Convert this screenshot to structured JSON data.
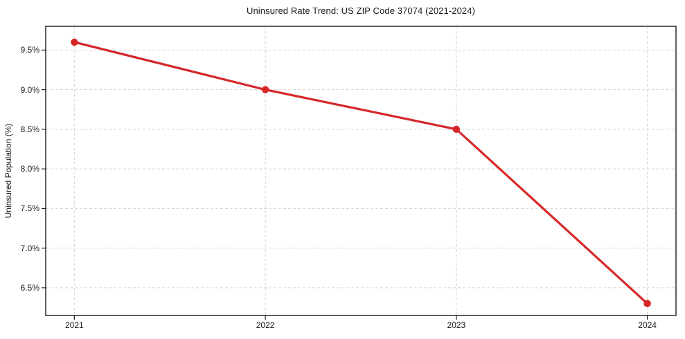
{
  "chart_data": {
    "type": "line",
    "title": "Uninsured Rate Trend: US ZIP Code 37074 (2021-2024)",
    "xlabel": "",
    "ylabel": "Uninsured Population (%)",
    "categories": [
      "2021",
      "2022",
      "2023",
      "2024"
    ],
    "x": [
      2021,
      2022,
      2023,
      2024
    ],
    "values": [
      9.6,
      9.0,
      8.5,
      6.3
    ],
    "xlim": [
      2020.85,
      2024.15
    ],
    "ylim": [
      6.15,
      9.8
    ],
    "ytick_values": [
      6.5,
      7.0,
      7.5,
      8.0,
      8.5,
      9.0,
      9.5
    ],
    "ytick_labels": [
      "6.5%",
      "7.0%",
      "7.5%",
      "8.0%",
      "8.5%",
      "9.0%",
      "9.5%"
    ],
    "grid": "on",
    "grid_style": "dashed",
    "legend": "none",
    "colors": {
      "line": "#d62728",
      "marker": "#d62728",
      "grid": "#d4d4d4",
      "axis": "#1a1a1a",
      "background": "#ffffff",
      "text": "#1a1a1a"
    }
  }
}
